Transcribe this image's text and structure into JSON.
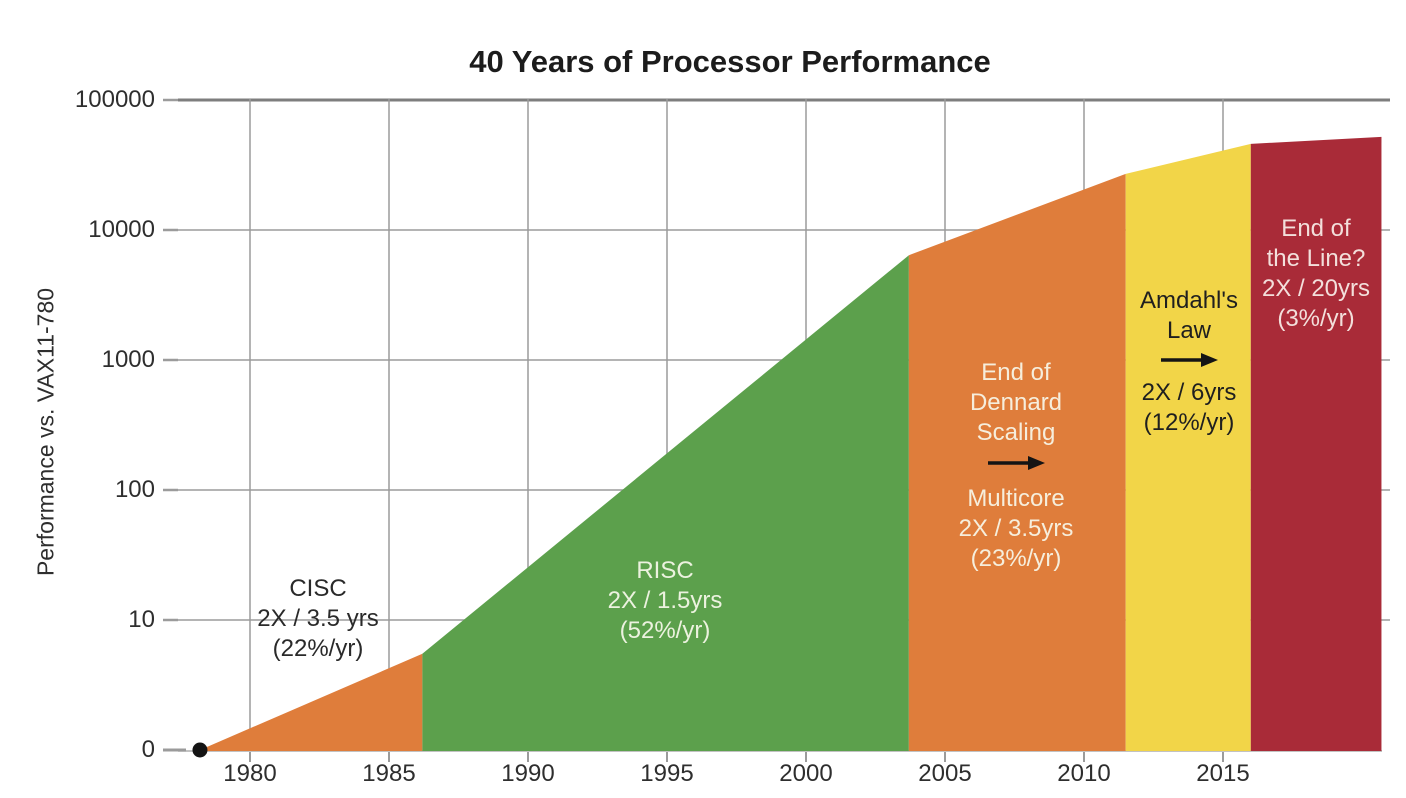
{
  "title": "40 Years of Processor Performance",
  "y_axis": {
    "title": "Performance vs. VAX11-780",
    "tick_labels": [
      "100000",
      "10000",
      "1000",
      "100",
      "10",
      "0"
    ]
  },
  "x_axis": {
    "tick_labels": [
      "1980",
      "1985",
      "1990",
      "1995",
      "2000",
      "2005",
      "2010",
      "2015"
    ]
  },
  "colors": {
    "background": "#FFFFFF",
    "grid": "#9B9B9B",
    "grid_top": "#7E7E7E",
    "baseline": "#ADADAD",
    "axis_text": "#2E2E2E",
    "title_text": "#1C1C1C",
    "arrow": "#141414",
    "origin_dot": "#141414"
  },
  "chart_data": {
    "type": "area",
    "title": "40 Years of Processor Performance",
    "ylabel": "Performance vs. VAX11-780",
    "y_scale": "log",
    "ylim": [
      1,
      100000
    ],
    "x_range": [
      1978.2,
      2020.7
    ],
    "grid": true,
    "legend": "none",
    "y_ticks": [
      {
        "label": "100000",
        "value": 100000
      },
      {
        "label": "10000",
        "value": 10000
      },
      {
        "label": "1000",
        "value": 1000
      },
      {
        "label": "100",
        "value": 100
      },
      {
        "label": "10",
        "value": 10
      },
      {
        "label": "0",
        "value": 1
      }
    ],
    "x_ticks": [
      1980,
      1985,
      1990,
      1995,
      2000,
      2005,
      2010,
      2015
    ],
    "origin_point": {
      "year": 1978.2,
      "performance": 1
    },
    "eras": [
      {
        "id": "cisc",
        "start_year": 1978.2,
        "end_year": 1986.2,
        "performance_start": 1,
        "performance_end": 5.5,
        "doubling": "2X / 3.5 yrs",
        "growth_pct_per_yr": 22,
        "color": "#DF7D3B",
        "text_color": "#2A2A2A",
        "label_top": [
          "CISC",
          "2X / 3.5 yrs",
          "(22%/yr)"
        ],
        "label_bottom": []
      },
      {
        "id": "risc",
        "start_year": 1986.2,
        "end_year": 2003.7,
        "performance_start": 5.5,
        "performance_end": 6400,
        "doubling": "2X / 1.5yrs",
        "growth_pct_per_yr": 52,
        "color": "#5CA04C",
        "text_color": "#ECF2DF",
        "label_top": [
          "RISC",
          "2X / 1.5yrs",
          "(52%/yr)"
        ],
        "label_bottom": []
      },
      {
        "id": "dennard-multicore",
        "start_year": 2003.7,
        "end_year": 2011.5,
        "performance_start": 6400,
        "performance_end": 27000,
        "doubling": "2X / 3.5yrs",
        "growth_pct_per_yr": 23,
        "color": "#DF7D3B",
        "text_color": "#F6EEDC",
        "label_top": [
          "End of",
          "Dennard",
          "Scaling"
        ],
        "arrow_icon": "right-arrow",
        "label_bottom": [
          "Multicore",
          "2X / 3.5yrs",
          "(23%/yr)"
        ]
      },
      {
        "id": "amdahl",
        "start_year": 2011.5,
        "end_year": 2016,
        "performance_start": 27000,
        "performance_end": 46000,
        "doubling": "2X / 6yrs",
        "growth_pct_per_yr": 12,
        "color": "#F2D548",
        "text_color": "#1F1F1F",
        "label_top": [
          "Amdahl's",
          "Law"
        ],
        "arrow_icon": "right-arrow",
        "label_bottom": [
          "2X / 6yrs",
          "(12%/yr)"
        ]
      },
      {
        "id": "end-of-line",
        "start_year": 2016,
        "end_year": 2020.7,
        "performance_start": 46000,
        "performance_end": 52000,
        "doubling": "2X / 20yrs",
        "growth_pct_per_yr": 3,
        "color": "#A92B38",
        "text_color": "#F3DFDB",
        "label_top": [
          "End of",
          "the Line?",
          "2X / 20yrs",
          "(3%/yr)"
        ],
        "label_bottom": []
      }
    ]
  }
}
